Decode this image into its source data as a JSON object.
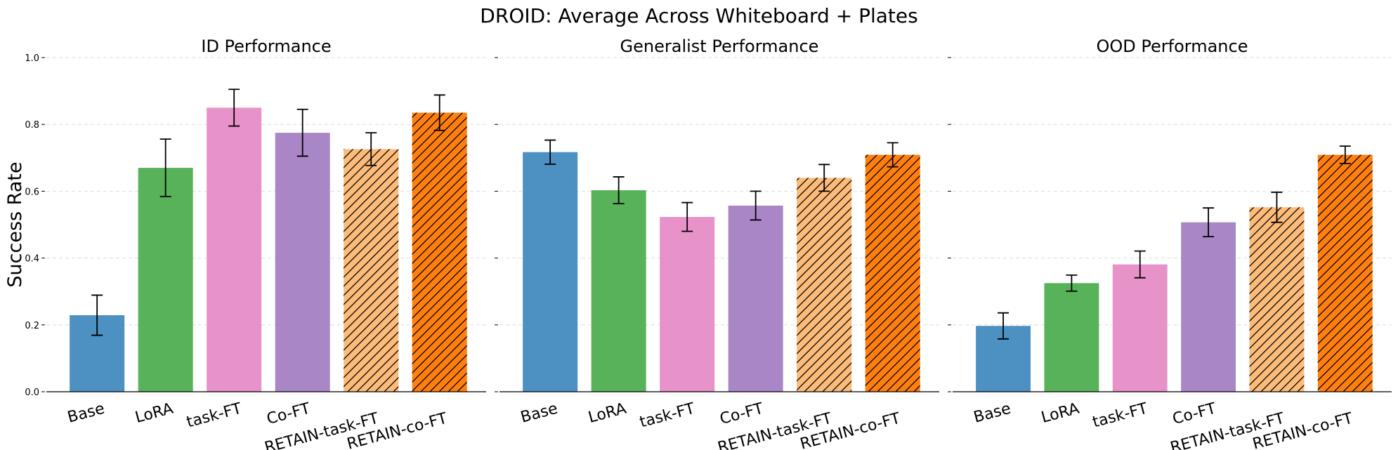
{
  "chart_data": {
    "type": "bar",
    "title": "DROID: Average Across Whiteboard + Plates",
    "ylabel": "Success Rate",
    "ylim": [
      0,
      1.0
    ],
    "yticks": [
      "0.0",
      "0.2",
      "0.4",
      "0.6",
      "0.8",
      "1.0"
    ],
    "grid": "horizontal dashed",
    "categories": [
      "Base",
      "LoRA",
      "task-FT",
      "Co-FT",
      "RETAIN-task-FT",
      "RETAIN-co-FT"
    ],
    "colors": [
      "#4c91c2",
      "#58b25a",
      "#e793c9",
      "#a987c6",
      "#fdbb7a",
      "#ff7f0e"
    ],
    "hatched": [
      false,
      false,
      false,
      false,
      true,
      true
    ],
    "panels": [
      {
        "title": "ID Performance",
        "values": [
          0.229,
          0.67,
          0.85,
          0.775,
          0.726,
          0.835
        ],
        "errors": [
          0.06,
          0.086,
          0.055,
          0.07,
          0.049,
          0.053
        ]
      },
      {
        "title": "Generalist Performance",
        "values": [
          0.717,
          0.603,
          0.523,
          0.557,
          0.64,
          0.709
        ],
        "errors": [
          0.036,
          0.04,
          0.043,
          0.043,
          0.04,
          0.036
        ]
      },
      {
        "title": "OOD Performance",
        "values": [
          0.197,
          0.325,
          0.381,
          0.507,
          0.552,
          0.709
        ],
        "errors": [
          0.039,
          0.024,
          0.04,
          0.043,
          0.045,
          0.026
        ]
      }
    ]
  }
}
